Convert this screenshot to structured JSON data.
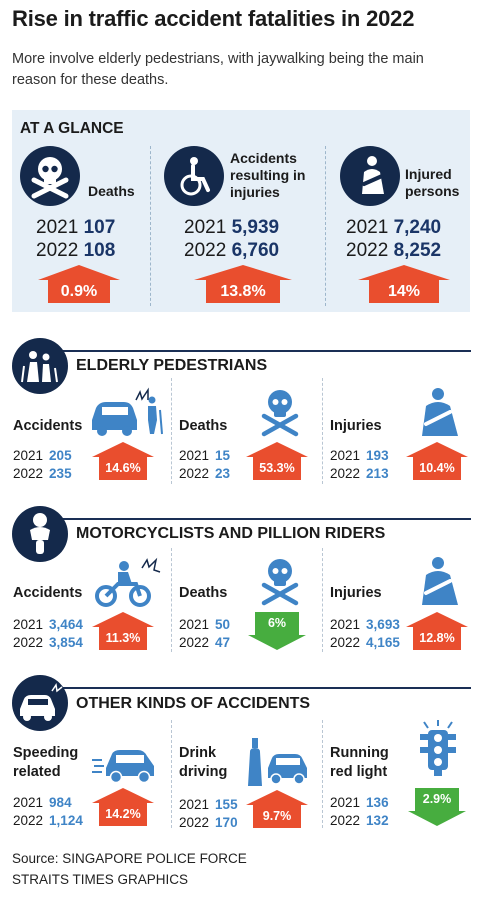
{
  "title": "Rise in traffic accident fatalities in 2022",
  "subtitle": "More involve elderly pedestrians, with jaywalking being the main reason for these deaths.",
  "colors": {
    "navy": "#14294b",
    "panel": "#e6eff7",
    "increase": "#e94e2e",
    "decrease": "#47ad3f",
    "value_blue": "#3f84c6"
  },
  "glance": {
    "heading": "AT A GLANCE",
    "items": [
      {
        "label": "Deaths",
        "icon": "skull-crossbones-icon",
        "y2021": "2021",
        "v2021": "107",
        "y2022": "2022",
        "v2022": "108",
        "change": "0.9%",
        "direction": "up"
      },
      {
        "label": "Accidents resulting in injuries",
        "icon": "wheelchair-icon",
        "y2021": "2021",
        "v2021": "5,939",
        "y2022": "2022",
        "v2022": "6,760",
        "change": "13.8%",
        "direction": "up"
      },
      {
        "label": "Injured persons",
        "icon": "arm-sling-icon",
        "y2021": "2021",
        "v2021": "7,240",
        "y2022": "2022",
        "v2022": "8,252",
        "change": "14%",
        "direction": "up"
      }
    ]
  },
  "sections": [
    {
      "title": "ELDERLY PEDESTRIANS",
      "icon": "elderly-couple-icon",
      "stats": [
        {
          "label": "Accidents",
          "icon": "car-pedestrian-collision-icon",
          "y2021": "2021",
          "v2021": "205",
          "y2022": "2022",
          "v2022": "235",
          "change": "14.6%",
          "direction": "up"
        },
        {
          "label": "Deaths",
          "icon": "skull-crossbones-icon",
          "y2021": "2021",
          "v2021": "15",
          "y2022": "2022",
          "v2022": "23",
          "change": "53.3%",
          "direction": "up"
        },
        {
          "label": "Injuries",
          "icon": "arm-sling-icon",
          "y2021": "2021",
          "v2021": "193",
          "y2022": "2022",
          "v2022": "213",
          "change": "10.4%",
          "direction": "up"
        }
      ]
    },
    {
      "title": "MOTORCYCLISTS AND PILLION RIDERS",
      "icon": "motorcyclist-icon",
      "stats": [
        {
          "label": "Accidents",
          "icon": "motorcycle-crash-icon",
          "y2021": "2021",
          "v2021": "3,464",
          "y2022": "2022",
          "v2022": "3,854",
          "change": "11.3%",
          "direction": "up"
        },
        {
          "label": "Deaths",
          "icon": "skull-crossbones-icon",
          "y2021": "2021",
          "v2021": "50",
          "y2022": "2022",
          "v2022": "47",
          "change": "6%",
          "direction": "down"
        },
        {
          "label": "Injuries",
          "icon": "arm-sling-icon",
          "y2021": "2021",
          "v2021": "3,693",
          "y2022": "2022",
          "v2022": "4,165",
          "change": "12.8%",
          "direction": "up"
        }
      ]
    },
    {
      "title": "OTHER KINDS OF ACCIDENTS",
      "icon": "car-crash-icon",
      "stats": [
        {
          "label": "Speeding related",
          "icon": "speeding-car-icon",
          "y2021": "2021",
          "v2021": "984",
          "y2022": "2022",
          "v2022": "1,124",
          "change": "14.2%",
          "direction": "up"
        },
        {
          "label": "Drink driving",
          "icon": "bottle-car-icon",
          "y2021": "2021",
          "v2021": "155",
          "y2022": "2022",
          "v2022": "170",
          "change": "9.7%",
          "direction": "up"
        },
        {
          "label": "Running red light",
          "icon": "traffic-light-icon",
          "y2021": "2021",
          "v2021": "136",
          "y2022": "2022",
          "v2022": "132",
          "change": "2.9%",
          "direction": "down"
        }
      ]
    }
  ],
  "source": {
    "line1": "Source: SINGAPORE POLICE FORCE",
    "line2": "STRAITS TIMES GRAPHICS"
  }
}
